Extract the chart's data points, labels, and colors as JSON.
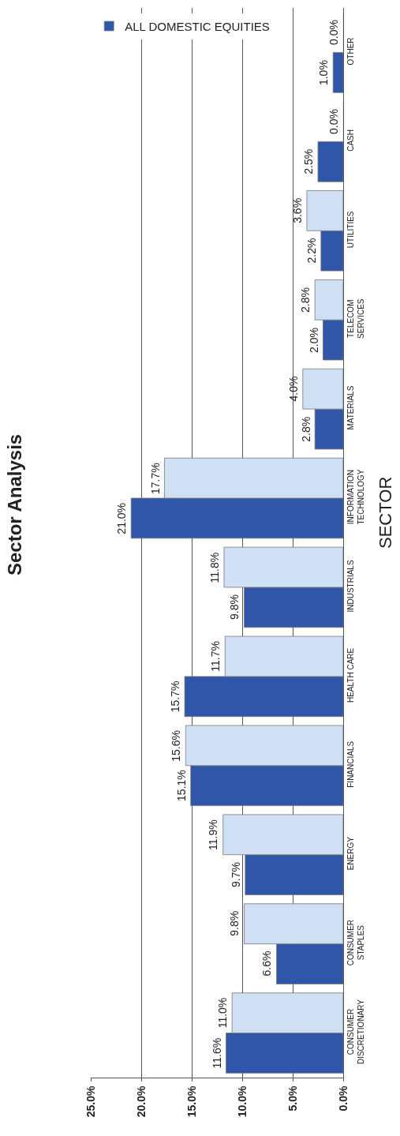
{
  "chart_data": {
    "type": "bar",
    "orientation": "horizontal",
    "title": "Sector Analysis",
    "ylabel": "SECTOR",
    "categories": [
      "OTHER",
      "CASH",
      "UTILITIES",
      "TELECOM\nSERVICES",
      "MATERIALS",
      "INFORMATION\nTECHNOLOGY",
      "INDUSTRIALS",
      "HEALTH CARE",
      "FINANCIALS",
      "ENERGY",
      "CONSUMER\nSTAPLES",
      "CONSUMER\nDISCRETIONARY"
    ],
    "series": [
      {
        "name": "ALL DOMESTIC EQUITIES",
        "color": "#2f56a8",
        "values": [
          1.0,
          2.5,
          2.2,
          2.0,
          2.8,
          21.0,
          9.8,
          15.7,
          15.1,
          9.7,
          6.6,
          11.6
        ],
        "value_labels": [
          "1.0%",
          "2.5%",
          "2.2%",
          "2.0%",
          "2.8%",
          "21.0%",
          "9.8%",
          "15.7%",
          "15.1%",
          "9.7%",
          "6.6%",
          "11.6%"
        ]
      },
      {
        "color": "#cfe0f5",
        "values": [
          0.0,
          0.0,
          3.6,
          2.8,
          4.0,
          17.7,
          11.8,
          11.7,
          15.6,
          11.9,
          9.8,
          11.0
        ],
        "value_labels": [
          "0.0%",
          "0.0%",
          "3.6%",
          "2.8%",
          "4.0%",
          "17.7%",
          "11.8%",
          "11.7%",
          "15.6%",
          "11.9%",
          "9.8%",
          "11.0%"
        ]
      }
    ],
    "xlim": [
      25,
      0
    ],
    "xticks": [
      {
        "value": 25,
        "label": "25.0%"
      },
      {
        "value": 20,
        "label": "20.0%"
      },
      {
        "value": 15,
        "label": "15.0%"
      },
      {
        "value": 10,
        "label": "10.0%"
      },
      {
        "value": 5,
        "label": "5.0%"
      },
      {
        "value": 0,
        "label": "0.0%"
      }
    ],
    "grid": "x",
    "legend": "left"
  }
}
